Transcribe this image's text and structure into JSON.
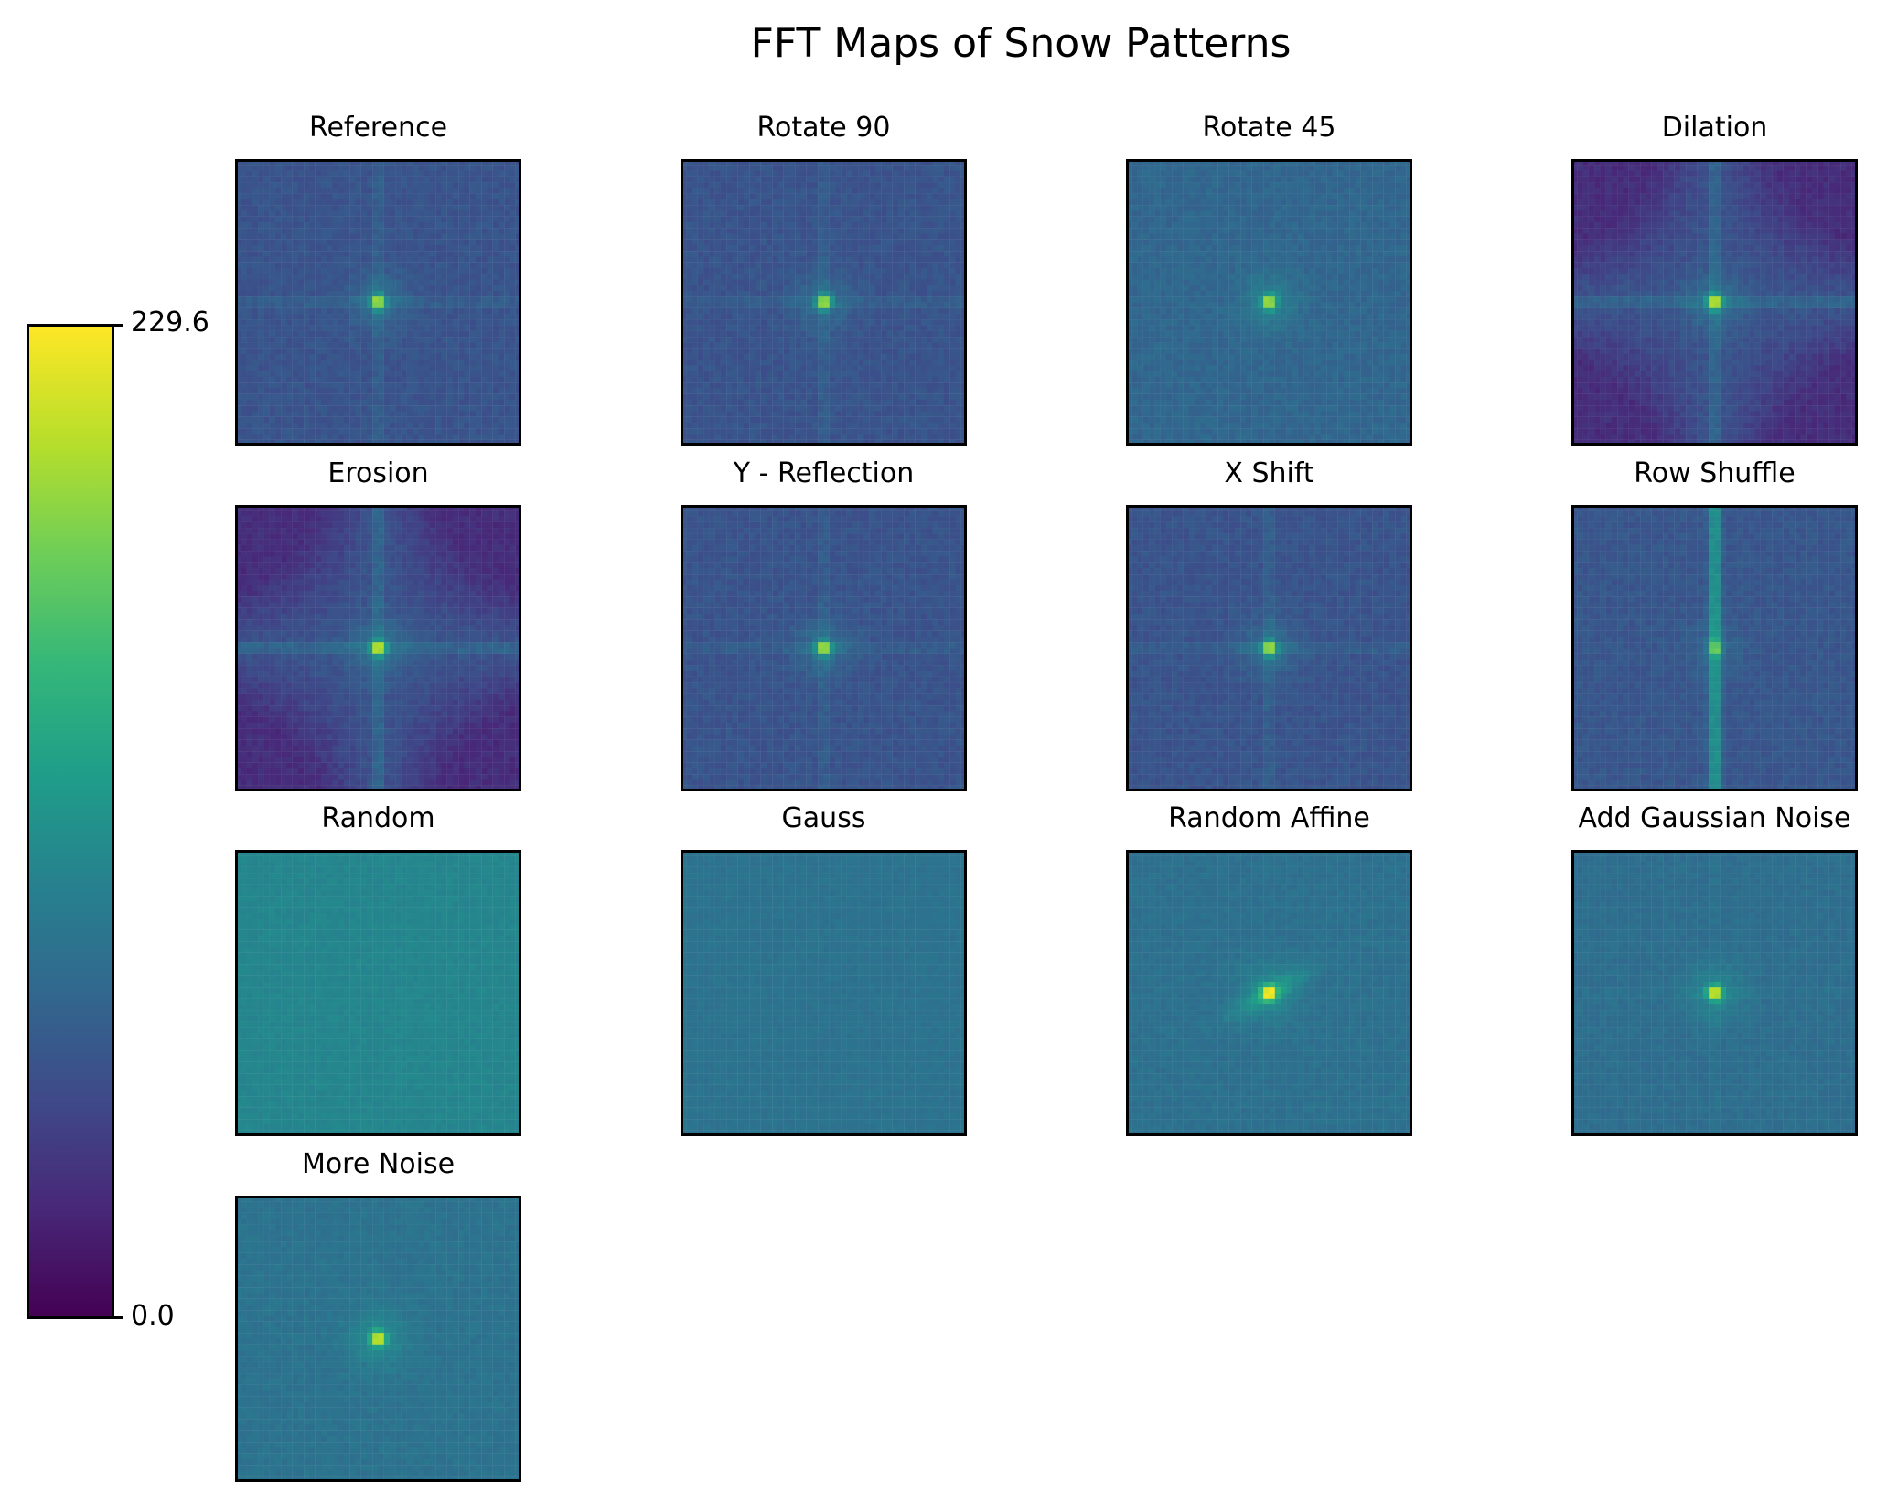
{
  "chart_data": {
    "type": "heatmap",
    "title": "FFT Maps of Snow Patterns",
    "colormap": "viridis",
    "colorbar": {
      "min": 0.0,
      "max": 229.6,
      "min_label": "0.0",
      "max_label": "229.6"
    },
    "grid": false,
    "panels": [
      {
        "title": "Reference",
        "base": 0.26,
        "cross": 0.08,
        "peak": 0.55,
        "corner": 0.0,
        "vband": 0.0,
        "streak": 0.0,
        "noise": 0.05
      },
      {
        "title": "Rotate 90",
        "base": 0.26,
        "cross": 0.07,
        "peak": 0.55,
        "corner": 0.0,
        "vband": 0.0,
        "streak": 0.0,
        "noise": 0.05
      },
      {
        "title": "Rotate 45",
        "base": 0.33,
        "cross": 0.0,
        "peak": 0.55,
        "corner": 0.0,
        "vband": 0.0,
        "streak": 0.0,
        "noise": 0.05
      },
      {
        "title": "Dilation",
        "base": 0.27,
        "cross": 0.12,
        "peak": 0.55,
        "corner": 0.14,
        "vband": 0.0,
        "streak": 0.0,
        "noise": 0.05
      },
      {
        "title": "Erosion",
        "base": 0.27,
        "cross": 0.12,
        "peak": 0.55,
        "corner": 0.14,
        "vband": 0.0,
        "streak": 0.0,
        "noise": 0.05
      },
      {
        "title": "Y - Reflection",
        "base": 0.26,
        "cross": 0.07,
        "peak": 0.55,
        "corner": 0.0,
        "vband": 0.0,
        "streak": 0.0,
        "noise": 0.05
      },
      {
        "title": "X Shift",
        "base": 0.26,
        "cross": 0.08,
        "peak": 0.55,
        "corner": 0.0,
        "vband": 0.0,
        "streak": 0.0,
        "noise": 0.05
      },
      {
        "title": "Row Shuffle",
        "base": 0.27,
        "cross": 0.0,
        "peak": 0.3,
        "corner": 0.0,
        "vband": 0.28,
        "streak": 0.0,
        "noise": 0.05
      },
      {
        "title": "Random",
        "base": 0.46,
        "cross": 0.0,
        "peak": 0.0,
        "corner": 0.0,
        "vband": 0.0,
        "streak": 0.0,
        "noise": 0.03
      },
      {
        "title": "Gauss",
        "base": 0.38,
        "cross": 0.0,
        "peak": 0.0,
        "corner": 0.0,
        "vband": 0.0,
        "streak": 0.0,
        "noise": 0.03
      },
      {
        "title": "Random Affine",
        "base": 0.37,
        "cross": 0.0,
        "peak": 0.55,
        "corner": 0.0,
        "vband": 0.0,
        "streak": 0.12,
        "noise": 0.04
      },
      {
        "title": "Add Gaussian Noise",
        "base": 0.36,
        "cross": 0.03,
        "peak": 0.55,
        "corner": 0.0,
        "vband": 0.0,
        "streak": 0.0,
        "noise": 0.04
      },
      {
        "title": "More Noise",
        "base": 0.38,
        "cross": 0.0,
        "peak": 0.55,
        "corner": 0.0,
        "vband": 0.0,
        "streak": 0.0,
        "noise": 0.04
      }
    ]
  }
}
